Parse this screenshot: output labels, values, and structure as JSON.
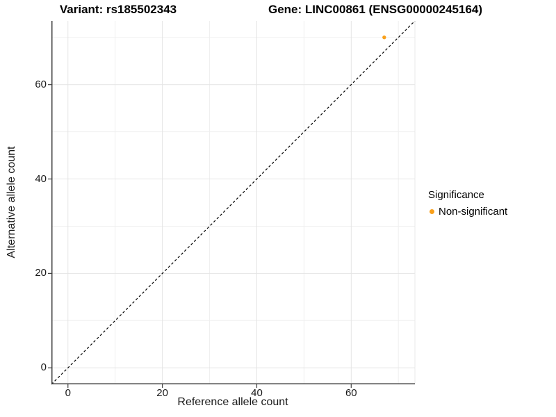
{
  "chart_data": {
    "type": "scatter",
    "title_left": "Variant: rs185502343",
    "title_right": "Gene: LINC00861 (ENSG00000245164)",
    "xlabel": "Reference allele count",
    "ylabel": "Alternative allele count",
    "xlim": [
      -3.5,
      73.5
    ],
    "ylim": [
      -3.5,
      73.5
    ],
    "x_ticks": [
      0,
      20,
      40,
      60
    ],
    "y_ticks": [
      0,
      20,
      40,
      60
    ],
    "x_minor_ticks": [
      10,
      30,
      50,
      70
    ],
    "y_minor_ticks": [
      10,
      30,
      50,
      70
    ],
    "grid": "major+minor",
    "identity_line": {
      "equation": "y = x",
      "style": "dashed",
      "color": "#000000"
    },
    "series": [
      {
        "name": "Non-significant",
        "color": "#F9A01B",
        "points": [
          {
            "x": 67,
            "y": 70
          }
        ]
      }
    ],
    "legend": {
      "title": "Significance",
      "position": "right",
      "items": [
        {
          "label": "Non-significant",
          "color": "#F9A01B"
        }
      ]
    },
    "colors": {
      "axis_line": "#404040",
      "grid_major": "#e4e4e4",
      "grid_minor": "#efefef",
      "panel_edge": "#e8e8e8",
      "tick_text": "#1a1a1a"
    }
  }
}
